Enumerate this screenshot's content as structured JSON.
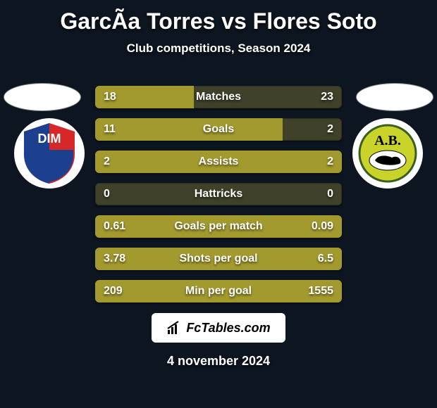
{
  "title": "GarcÃ­a Torres vs Flores Soto",
  "subtitle": "Club competitions, Season 2024",
  "footer_brand": "FcTables.com",
  "footer_date": "4 november 2024",
  "colors": {
    "background": "#0d1520",
    "bar_fill": "#a39a2f",
    "bar_bg": "rgba(157,150,64,0.35)",
    "text": "#ffffff"
  },
  "team_left": {
    "name": "DIM",
    "badge_colors": {
      "top_left": "#1d3f8f",
      "top_right": "#d62828",
      "bottom": "#1d3f8f",
      "text": "#ffffff"
    }
  },
  "team_right": {
    "name": "A.B.",
    "badge_colors": {
      "bg": "#c9d32a",
      "text": "#000000",
      "panther": "#000000"
    }
  },
  "rows": [
    {
      "label": "Matches",
      "left": "18",
      "right": "23",
      "left_pct": 40,
      "right_pct": 0
    },
    {
      "label": "Goals",
      "left": "11",
      "right": "2",
      "left_pct": 76,
      "right_pct": 0
    },
    {
      "label": "Assists",
      "left": "2",
      "right": "2",
      "left_pct": 50,
      "right_pct": 50
    },
    {
      "label": "Hattricks",
      "left": "0",
      "right": "0",
      "left_pct": 0,
      "right_pct": 0
    },
    {
      "label": "Goals per match",
      "left": "0.61",
      "right": "0.09",
      "left_pct": 100,
      "right_pct": 0
    },
    {
      "label": "Shots per goal",
      "left": "3.78",
      "right": "6.5",
      "left_pct": 0,
      "right_pct": 100
    },
    {
      "label": "Min per goal",
      "left": "209",
      "right": "1555",
      "left_pct": 0,
      "right_pct": 100
    }
  ]
}
